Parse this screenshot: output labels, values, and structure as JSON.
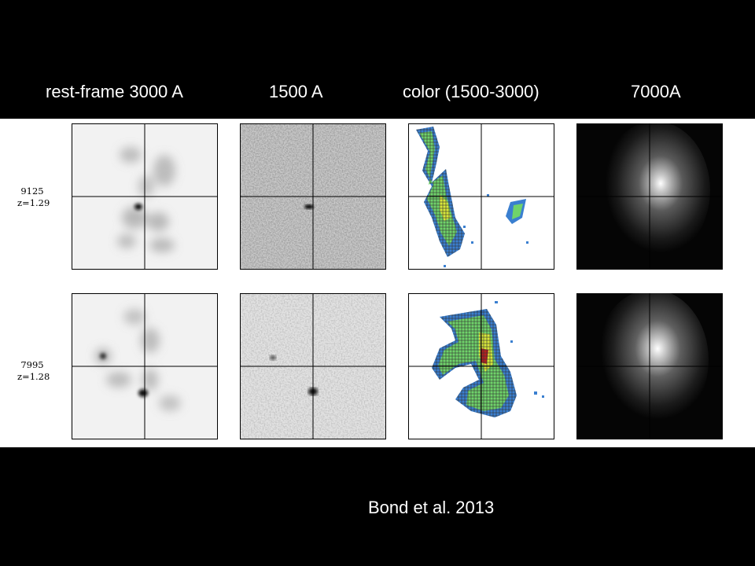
{
  "column_labels": [
    "rest-frame 3000 A",
    "1500 A",
    "color (1500-3000)",
    "7000A"
  ],
  "rows": [
    {
      "id": "9125",
      "z": "z=1.29"
    },
    {
      "id": "7995",
      "z": "z=1.28"
    }
  ],
  "credit": "Bond et al. 2013",
  "colors": {
    "background": "#000000",
    "figure_bg": "#ffffff",
    "text": "#ffffff"
  }
}
